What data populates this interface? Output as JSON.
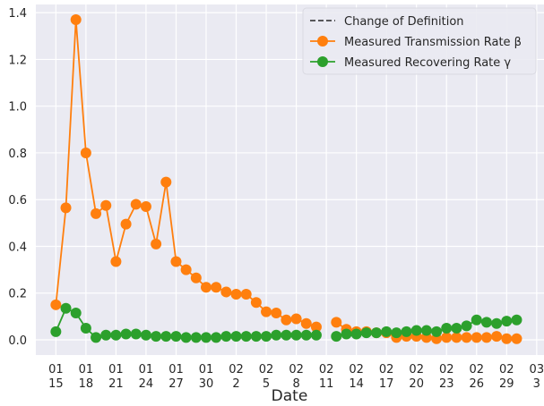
{
  "chart_data": {
    "type": "line",
    "x_label": "Date",
    "x": [
      "01-15",
      "01-16",
      "01-17",
      "01-18",
      "01-19",
      "01-20",
      "01-21",
      "01-22",
      "01-23",
      "01-24",
      "01-25",
      "01-26",
      "01-27",
      "01-28",
      "01-29",
      "01-30",
      "01-31",
      "02-01",
      "02-02",
      "02-03",
      "02-04",
      "02-05",
      "02-06",
      "02-07",
      "02-08",
      "02-09",
      "02-10",
      "02-11",
      "02-12",
      "02-13",
      "02-14",
      "02-15",
      "02-16",
      "02-17",
      "02-18",
      "02-19",
      "02-20",
      "02-21",
      "02-22",
      "02-23",
      "02-24",
      "02-25",
      "02-26",
      "02-27",
      "02-28",
      "02-29",
      "03-01"
    ],
    "series": [
      {
        "name": "Change of Definition",
        "color": "#444444",
        "linestyle": "dashed",
        "marker": false,
        "values": [
          null,
          null,
          null,
          null,
          null,
          null,
          null,
          null,
          null,
          null,
          null,
          null,
          null,
          null,
          null,
          null,
          null,
          null,
          null,
          null,
          null,
          null,
          null,
          null,
          null,
          null,
          0.055,
          null,
          0.075,
          null,
          null,
          null,
          null,
          null,
          null,
          null,
          null,
          null,
          null,
          null,
          null,
          null,
          null,
          null,
          null,
          null,
          null
        ]
      },
      {
        "name": "Measured Transmission Rate β",
        "color": "#ff7f0e",
        "linestyle": "solid",
        "marker": true,
        "values": [
          0.15,
          0.565,
          1.37,
          0.8,
          0.54,
          0.575,
          0.335,
          0.495,
          0.58,
          0.57,
          0.41,
          0.675,
          0.335,
          0.3,
          0.265,
          0.225,
          0.225,
          0.205,
          0.195,
          0.195,
          0.16,
          0.12,
          0.115,
          0.085,
          0.09,
          0.07,
          0.055,
          null,
          0.075,
          0.045,
          0.035,
          0.035,
          0.03,
          0.03,
          0.01,
          0.015,
          0.015,
          0.01,
          0.005,
          0.01,
          0.01,
          0.01,
          0.01,
          0.01,
          0.015,
          0.005,
          0.005
        ]
      },
      {
        "name": "Measured Recovering Rate γ",
        "color": "#2ca02c",
        "linestyle": "solid",
        "marker": true,
        "values": [
          0.035,
          0.135,
          0.115,
          0.05,
          0.01,
          0.02,
          0.02,
          0.025,
          0.025,
          0.02,
          0.015,
          0.015,
          0.015,
          0.01,
          0.01,
          0.01,
          0.01,
          0.015,
          0.015,
          0.015,
          0.015,
          0.015,
          0.02,
          0.02,
          0.02,
          0.02,
          0.02,
          null,
          0.015,
          0.025,
          0.025,
          0.03,
          0.03,
          0.035,
          0.03,
          0.035,
          0.04,
          0.04,
          0.035,
          0.05,
          0.05,
          0.06,
          0.085,
          0.075,
          0.07,
          0.08,
          0.085
        ]
      }
    ],
    "xlim": [
      "01-13",
      "03-04"
    ],
    "xticks": [
      {
        "value": "01-15",
        "label": "01\n15"
      },
      {
        "value": "01-18",
        "label": "01\n18"
      },
      {
        "value": "01-21",
        "label": "01\n21"
      },
      {
        "value": "01-24",
        "label": "01\n24"
      },
      {
        "value": "01-27",
        "label": "01\n27"
      },
      {
        "value": "01-30",
        "label": "01\n30"
      },
      {
        "value": "02-02",
        "label": "02\n2"
      },
      {
        "value": "02-05",
        "label": "02\n5"
      },
      {
        "value": "02-08",
        "label": "02\n8"
      },
      {
        "value": "02-11",
        "label": "02\n11"
      },
      {
        "value": "02-14",
        "label": "02\n14"
      },
      {
        "value": "02-17",
        "label": "02\n17"
      },
      {
        "value": "02-20",
        "label": "02\n20"
      },
      {
        "value": "02-23",
        "label": "02\n23"
      },
      {
        "value": "02-26",
        "label": "02\n26"
      },
      {
        "value": "02-29",
        "label": "02\n29"
      },
      {
        "value": "03-03",
        "label": "03\n3"
      }
    ],
    "ylim": [
      -0.065,
      1.435
    ],
    "yticks": [
      {
        "value": 0,
        "label": "0.0"
      },
      {
        "value": 0.2,
        "label": "0.2"
      },
      {
        "value": 0.4,
        "label": "0.4"
      },
      {
        "value": 0.6,
        "label": "0.6"
      },
      {
        "value": 0.8,
        "label": "0.8"
      },
      {
        "value": 1,
        "label": "1.0"
      },
      {
        "value": 1.2,
        "label": "1.2"
      },
      {
        "value": 1.4,
        "label": "1.4"
      }
    ],
    "grid": true,
    "legend": "upper right"
  }
}
